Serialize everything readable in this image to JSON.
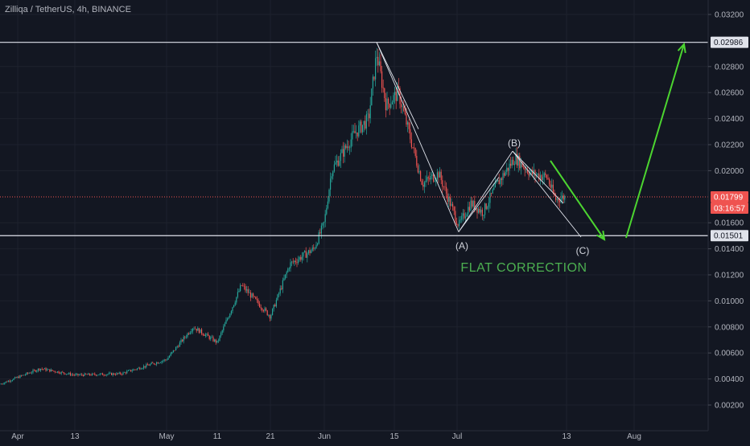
{
  "header": {
    "symbol_title": "Zilliqa / TetherUS, 4h, BINANCE"
  },
  "chart_data": {
    "type": "candlestick",
    "y_axis": {
      "scale": "linear",
      "ylim": [
        0.0011,
        0.0328
      ],
      "ticks": [
        "0.03200",
        "0.02800",
        "0.02600",
        "0.02400",
        "0.02200",
        "0.02000",
        "0.01600",
        "0.01400",
        "0.01200",
        "0.01000",
        "0.00800",
        "0.00600",
        "0.00400",
        "0.00200"
      ]
    },
    "x_axis": {
      "ticks": [
        "Apr",
        "13",
        "May",
        "11",
        "21",
        "Jun",
        "15",
        "Jul",
        "13",
        "Aug"
      ]
    },
    "grid": true,
    "price_labels": {
      "resistance": "0.02986",
      "current_price": "0.01799",
      "countdown": "03:16:57",
      "support": "0.01501"
    },
    "horizontal_levels": [
      0.02986,
      0.01501
    ],
    "current_price_level": 0.01799,
    "price_path_keypoints": [
      [
        "Apr",
        0.0036
      ],
      [
        "13",
        0.0044
      ],
      [
        "May",
        0.0055
      ],
      [
        "11",
        0.0071
      ],
      [
        "21",
        0.0092
      ],
      [
        "Jun",
        0.015
      ],
      [
        "15",
        0.025
      ],
      [
        "Jul",
        0.0175
      ],
      [
        "13",
        0.019
      ]
    ],
    "wave_pattern": {
      "points": [
        {
          "label": "",
          "price": 0.02986
        },
        {
          "label": "(A)",
          "price": 0.0153
        },
        {
          "label": "(B)",
          "price": 0.0215
        },
        {
          "label": "(C)",
          "price": 0.0149
        }
      ]
    },
    "annotations": {
      "pattern_label": "FLAT CORRECTION"
    },
    "colors": {
      "up": "#26a69a",
      "down": "#ef5350",
      "arrow": "#4cd530",
      "label_green": "#4caf50",
      "wave_lines": "#e0e3eb",
      "price_line": "#ef5350",
      "background": "#131722"
    }
  }
}
